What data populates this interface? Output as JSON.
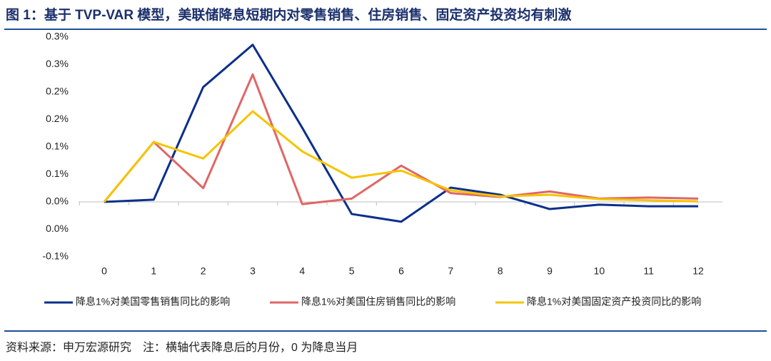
{
  "chart_data": {
    "type": "line",
    "title": "图 1：基于 TVP-VAR 模型，美联储降息短期内对零售销售、住房销售、固定资产投资均有刺激",
    "categories": [
      "0",
      "1",
      "2",
      "3",
      "4",
      "5",
      "6",
      "7",
      "8",
      "9",
      "10",
      "11",
      "12"
    ],
    "series": [
      {
        "name": "降息1%对美国零售销售同比的影响",
        "color": "#0c2f8a",
        "values": [
          0,
          0.004,
          0.209,
          0.286,
          0.135,
          -0.022,
          -0.036,
          0.026,
          0.013,
          -0.013,
          -0.005,
          -0.008,
          -0.008
        ]
      },
      {
        "name": "降息1%对美国住房销售同比的影响",
        "color": "#e06666",
        "values": [
          0,
          0.109,
          0.025,
          0.232,
          -0.004,
          0.006,
          0.066,
          0.016,
          0.009,
          0.019,
          0.006,
          0.008,
          0.006
        ]
      },
      {
        "name": "降息1%对美国固定资产投资同比的影响",
        "color": "#f5c400",
        "values": [
          0,
          0.109,
          0.079,
          0.165,
          0.092,
          0.044,
          0.057,
          0.021,
          0.01,
          0.013,
          0.005,
          0.003,
          0.001
        ]
      }
    ],
    "ylim": [
      -0.1,
      0.3
    ],
    "yticks": [
      {
        "value": -0.1,
        "label": "-0.1%"
      },
      {
        "value": -0.05,
        "label": "0.0%"
      },
      {
        "value": 0,
        "label": "0.0%"
      },
      {
        "value": 0.05,
        "label": "0.1%"
      },
      {
        "value": 0.1,
        "label": "0.1%"
      },
      {
        "value": 0.15,
        "label": "0.2%"
      },
      {
        "value": 0.2,
        "label": "0.2%"
      },
      {
        "value": 0.25,
        "label": "0.3%"
      },
      {
        "value": 0.3,
        "label": "0.3%"
      }
    ],
    "grid": false,
    "source": "资料来源：申万宏源研究　注：横轴代表降息后的月份，0 为降息当月"
  }
}
